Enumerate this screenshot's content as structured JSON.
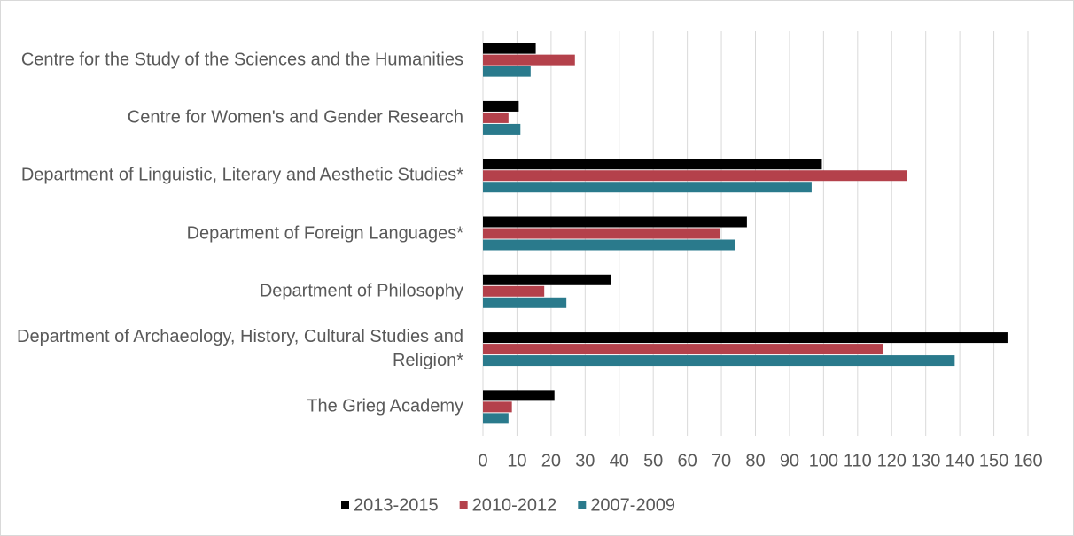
{
  "chart_data": {
    "type": "hbar",
    "categories": [
      "Centre for the Study of the Sciences and the Humanities",
      "Centre for Women's and Gender Research",
      "Department of Linguistic, Literary and Aesthetic Studies*",
      "Department of Foreign Languages*",
      "Department of Philosophy",
      "Department of Archaeology, History, Cultural Studies and Religion*",
      "The Grieg Academy"
    ],
    "series": [
      {
        "name": "2013-2015",
        "color": "#000000",
        "values": [
          15.5,
          10.5,
          99.5,
          77.5,
          37.5,
          154,
          21
        ]
      },
      {
        "name": "2010-2012",
        "color": "#b4414b",
        "values": [
          27,
          7.5,
          124.5,
          69.5,
          18,
          117.5,
          8.5
        ]
      },
      {
        "name": "2007-2009",
        "color": "#2a7a8c",
        "values": [
          14,
          11,
          96.5,
          74,
          24.5,
          138.5,
          7.5
        ]
      }
    ],
    "xlim": [
      0,
      160
    ],
    "xticks": [
      0,
      10,
      20,
      30,
      40,
      50,
      60,
      70,
      80,
      90,
      100,
      110,
      120,
      130,
      140,
      150,
      160
    ],
    "grid": true,
    "legend": "bottom"
  }
}
